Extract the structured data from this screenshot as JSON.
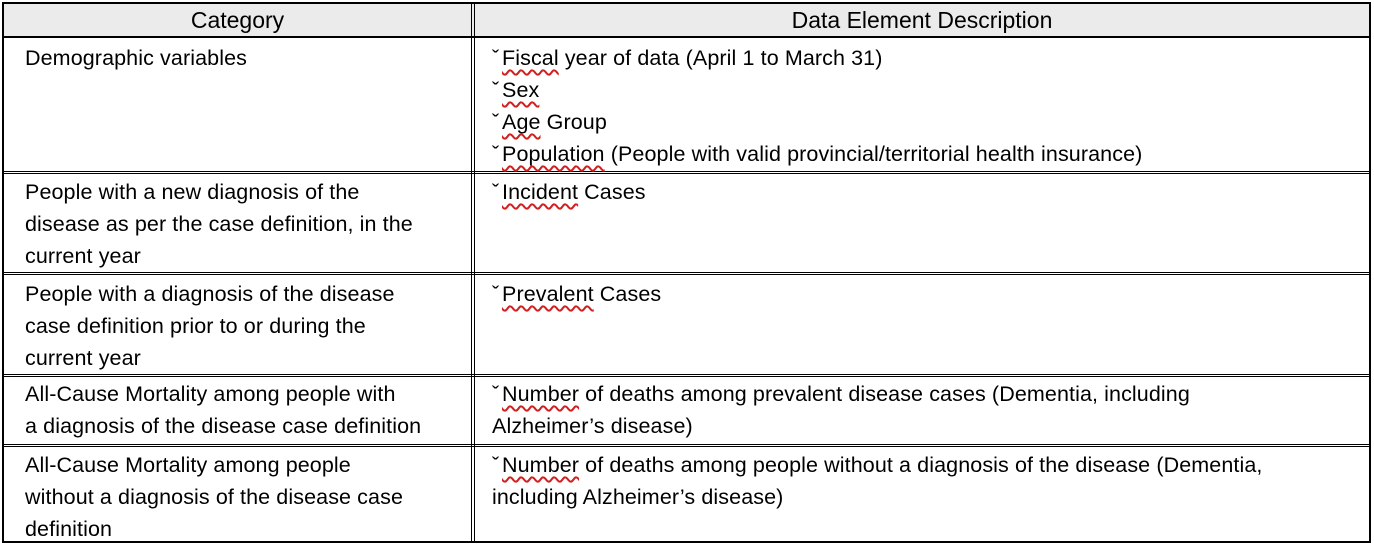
{
  "headers": {
    "category": "Category",
    "description": "Data Element Description"
  },
  "rows": [
    {
      "category_lines": [
        "Demographic variables"
      ],
      "items": [
        {
          "bullet": "ˇ",
          "head": "Fiscal",
          "rest": " year of data (April 1 to March 31)"
        },
        {
          "bullet": "ˇ",
          "head": "Sex",
          "rest": ""
        },
        {
          "bullet": "ˇ",
          "head": "Age",
          "rest": " Group"
        },
        {
          "bullet": "ˇ",
          "head": "Population",
          "rest": " (People with valid provincial/territorial health insurance)"
        }
      ]
    },
    {
      "category_lines": [
        "People with a new diagnosis of the",
        "disease as per the case definition, in the",
        "current year"
      ],
      "items": [
        {
          "bullet": "ˇ",
          "head": "Incident",
          "rest": " Cases"
        }
      ]
    },
    {
      "category_lines": [
        "People with a diagnosis of the disease",
        "case definition prior to or during the",
        "current year"
      ],
      "items": [
        {
          "bullet": "ˇ",
          "head": "Prevalent",
          "rest": " Cases"
        }
      ]
    },
    {
      "category_lines": [
        "All-Cause Mortality among people with",
        "a diagnosis of the disease case definition"
      ],
      "items": [
        {
          "bullet": "ˇ",
          "head": "Number",
          "rest": " of deaths among prevalent disease cases (Dementia, including"
        },
        {
          "bullet": "",
          "head": "",
          "rest": "Alzheimer’s disease)"
        }
      ]
    },
    {
      "category_lines": [
        "All-Cause Mortality among people",
        "without a diagnosis of the disease case",
        "definition"
      ],
      "items": [
        {
          "bullet": "ˇ",
          "head": "Number",
          "rest": " of deaths among people without a diagnosis of the disease (Dementia,"
        },
        {
          "bullet": "",
          "head": "",
          "rest": "including Alzheimer’s disease)"
        }
      ]
    }
  ]
}
